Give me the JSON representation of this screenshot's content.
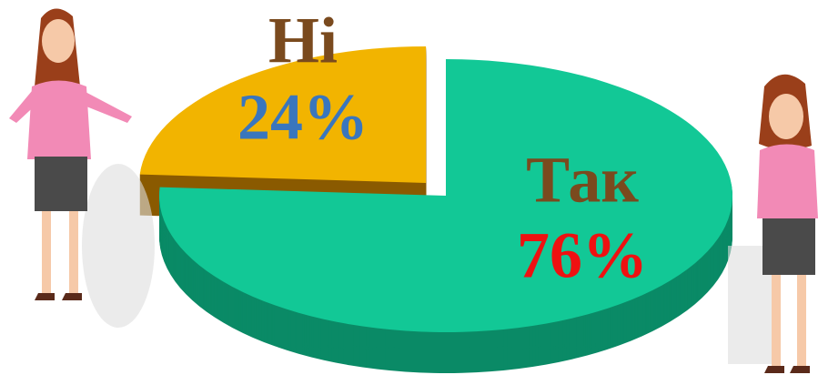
{
  "chart_data": {
    "type": "pie",
    "categories": [
      "Ні",
      "Так"
    ],
    "values": [
      24,
      76
    ],
    "value_labels": [
      "24%",
      "76%"
    ],
    "colors": [
      "#f2b400",
      "#12c896"
    ],
    "side_colors": [
      "#8a5a00",
      "#0a8a66"
    ],
    "exploded": [
      true,
      false
    ]
  }
}
